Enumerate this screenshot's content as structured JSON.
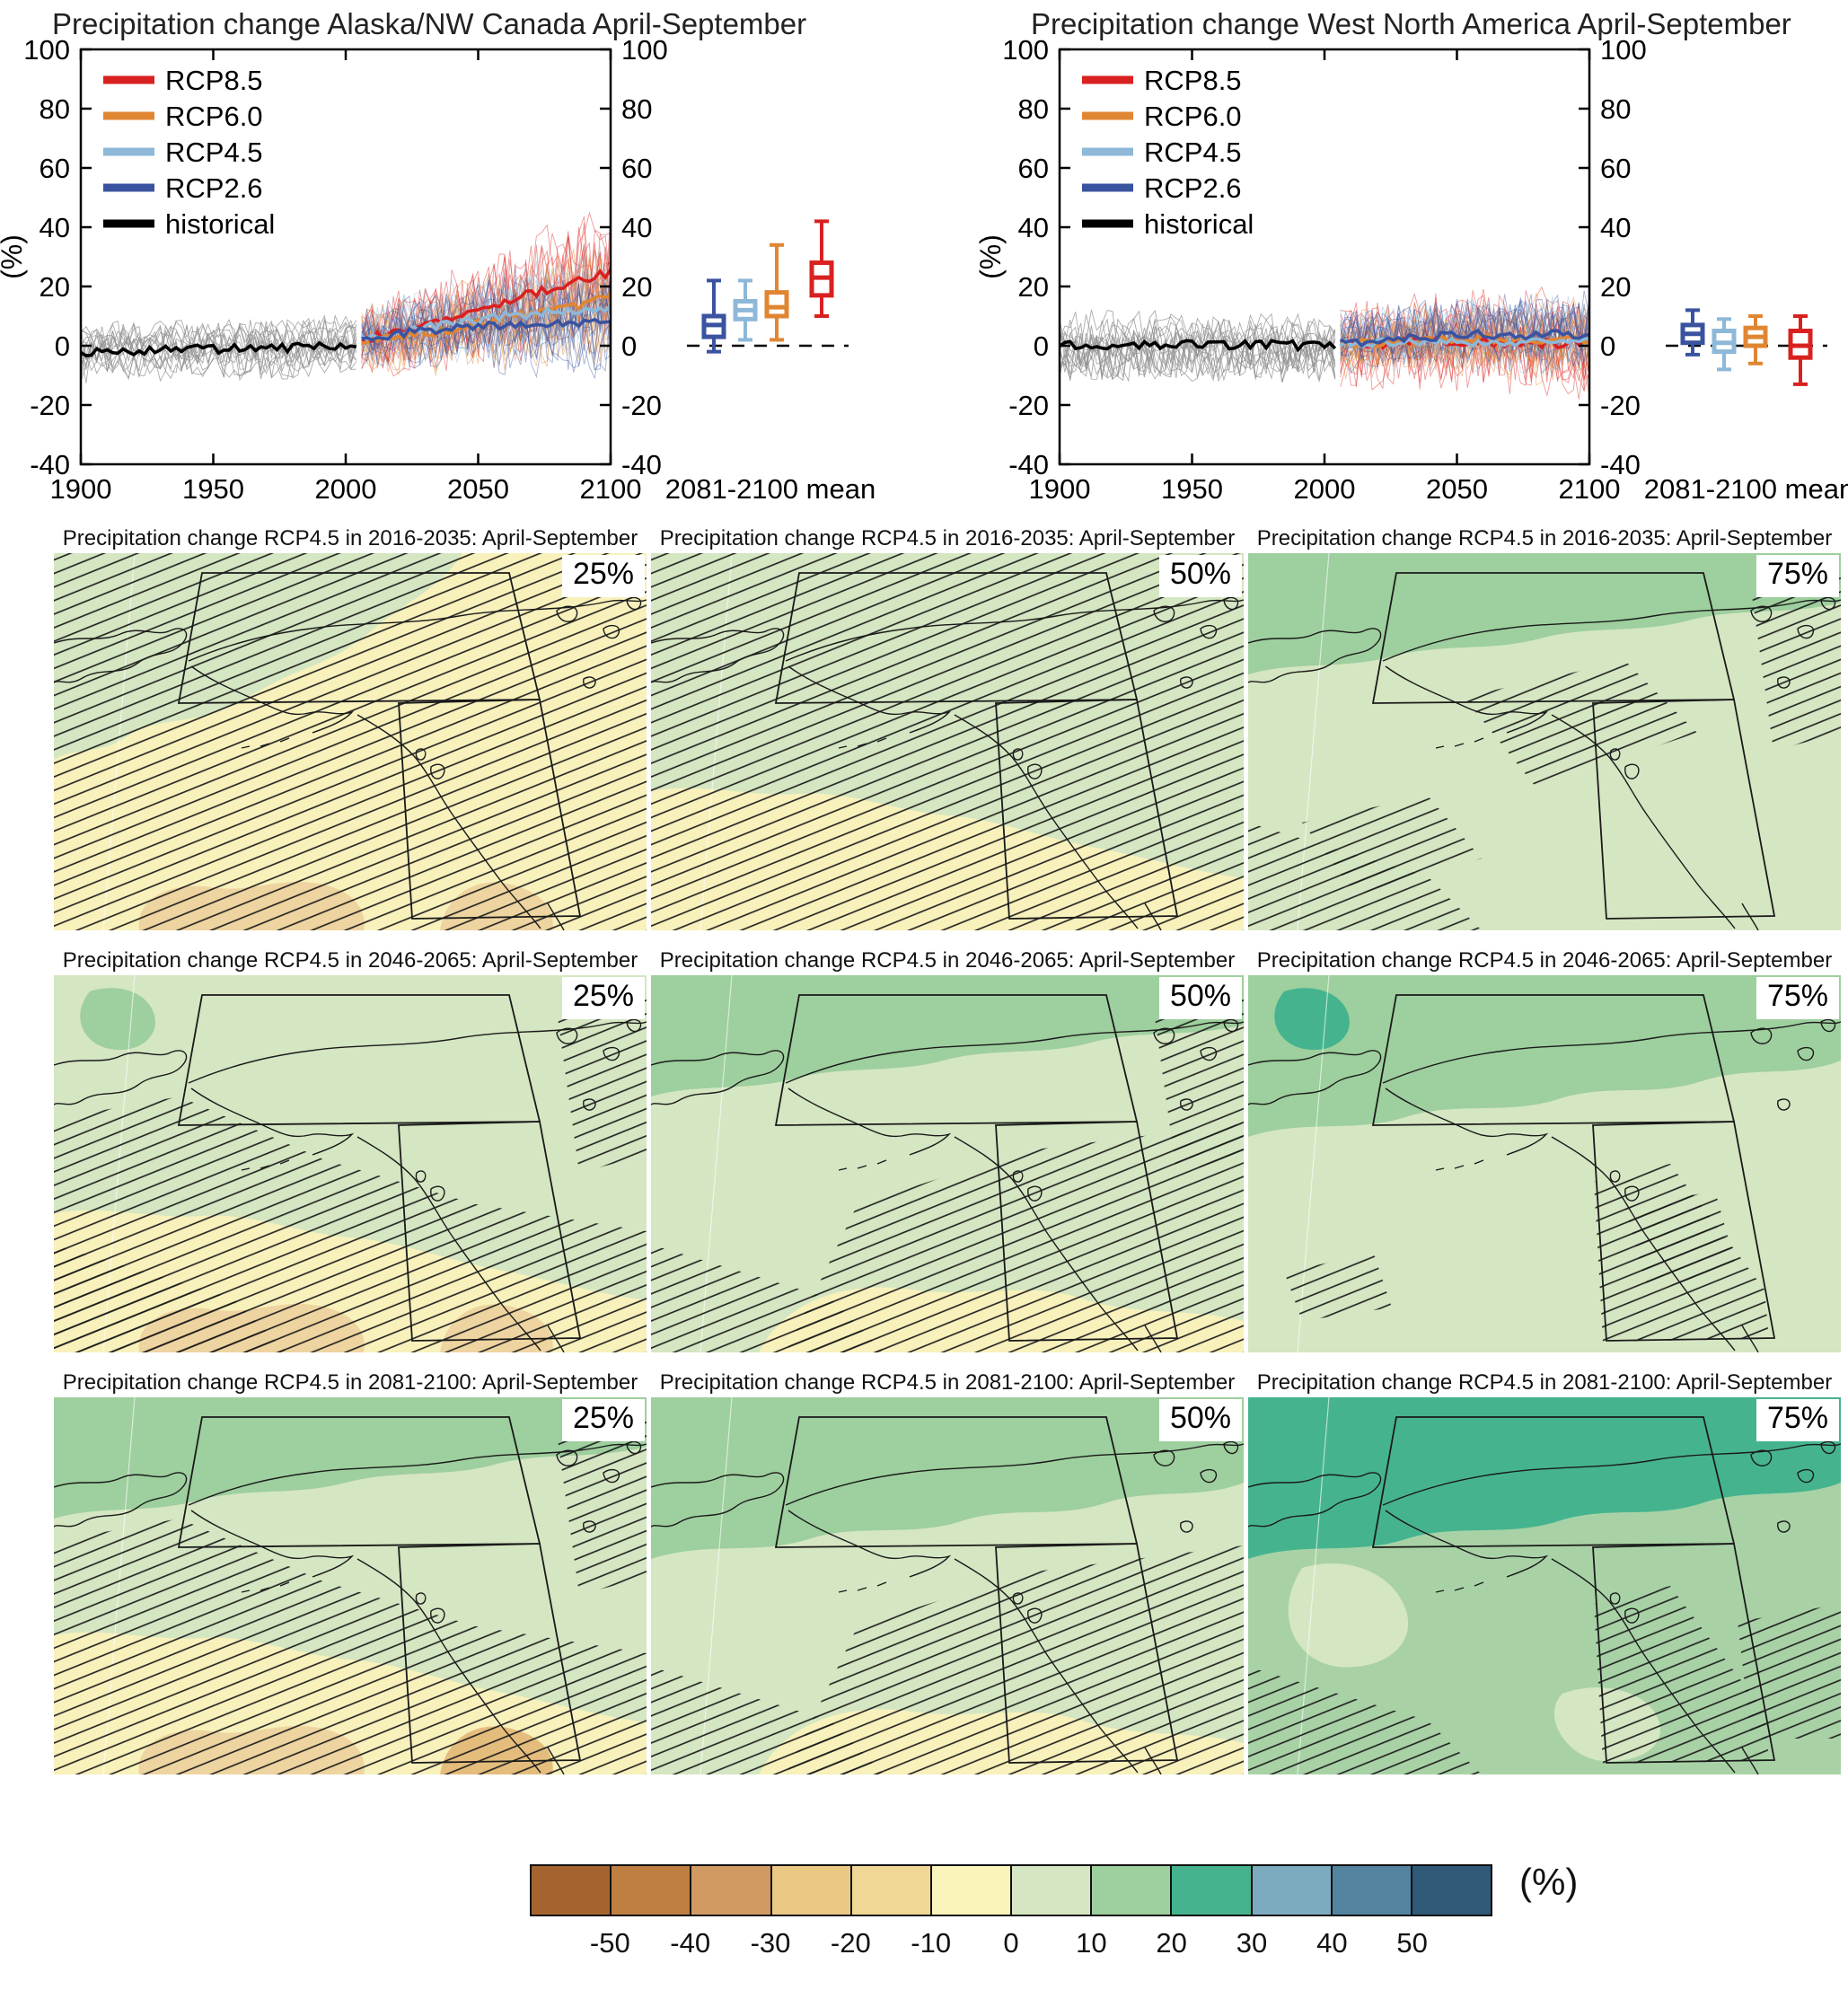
{
  "colors": {
    "rcp85": "#d92120",
    "rcp60": "#e08632",
    "rcp45": "#8db8d8",
    "rcp26": "#3a53a0",
    "historical": "#000000",
    "hist_ensemble": "#909090",
    "map_outline": "#1a1a1a"
  },
  "legend": [
    {
      "key": "rcp85",
      "label": "RCP8.5"
    },
    {
      "key": "rcp60",
      "label": "RCP6.0"
    },
    {
      "key": "rcp45",
      "label": "RCP4.5"
    },
    {
      "key": "rcp26",
      "label": "RCP2.6"
    },
    {
      "key": "historical",
      "label": "historical"
    }
  ],
  "chart_data": {
    "type": "line+box",
    "note": "Ensemble spaghetti time series 1900-2100 with 2081-2100 box-whisker summaries",
    "ylim": [
      -40,
      100
    ],
    "yticks": [
      -40,
      -20,
      0,
      20,
      40,
      60,
      80,
      100
    ],
    "xticks": [
      1900,
      1950,
      2000,
      2050,
      2100
    ]
  },
  "charts": [
    {
      "title": "Precipitation change Alaska/NW Canada April-September",
      "ylabel": "(%)",
      "box_label": "2081-2100 mean",
      "ylim": [
        -40,
        100
      ],
      "yticks": [
        -40,
        -20,
        0,
        20,
        40,
        60,
        80,
        100
      ],
      "xticks": [
        1900,
        1950,
        2000,
        2050,
        2100
      ],
      "trends": {
        "historical": {
          "x": [
            1900,
            1920,
            1940,
            1960,
            1980,
            2000,
            2005
          ],
          "y": [
            -2,
            -1.5,
            -1,
            -1,
            -0.5,
            0.5,
            1
          ]
        },
        "rcp26": {
          "x": [
            2006,
            2030,
            2060,
            2100
          ],
          "y": [
            2,
            5,
            7,
            8
          ]
        },
        "rcp45": {
          "x": [
            2006,
            2030,
            2060,
            2100
          ],
          "y": [
            2,
            6,
            10,
            13
          ]
        },
        "rcp60": {
          "x": [
            2006,
            2030,
            2060,
            2100
          ],
          "y": [
            2,
            4,
            9,
            16
          ]
        },
        "rcp85": {
          "x": [
            2006,
            2030,
            2060,
            2100
          ],
          "y": [
            2,
            7,
            15,
            25
          ]
        }
      },
      "noise": {
        "hist_band": 11,
        "proj_band": 14,
        "proj_growth": 1.9,
        "seed": 7
      },
      "boxes": [
        {
          "key": "rcp26",
          "lo": -2,
          "q1": 3,
          "med": 7,
          "q3": 10,
          "hi": 22
        },
        {
          "key": "rcp45",
          "lo": 2,
          "q1": 9,
          "med": 12,
          "q3": 15,
          "hi": 22
        },
        {
          "key": "rcp60",
          "lo": 2,
          "q1": 10,
          "med": 13,
          "q3": 18,
          "hi": 34
        },
        {
          "key": "rcp85",
          "lo": 10,
          "q1": 17,
          "med": 23,
          "q3": 28,
          "hi": 42
        }
      ]
    },
    {
      "title": "Precipitation change West North America April-September",
      "ylabel": "(%)",
      "box_label": "2081-2100 mean",
      "ylim": [
        -40,
        100
      ],
      "yticks": [
        -40,
        -20,
        0,
        20,
        40,
        60,
        80,
        100
      ],
      "xticks": [
        1900,
        1950,
        2000,
        2050,
        2100
      ],
      "trends": {
        "historical": {
          "x": [
            1900,
            1950,
            2000,
            2005
          ],
          "y": [
            0,
            0.5,
            0,
            0.5
          ]
        },
        "rcp26": {
          "x": [
            2006,
            2050,
            2100
          ],
          "y": [
            1,
            3.5,
            4
          ]
        },
        "rcp45": {
          "x": [
            2006,
            2050,
            2100
          ],
          "y": [
            0.5,
            1.5,
            1
          ]
        },
        "rcp60": {
          "x": [
            2006,
            2050,
            2100
          ],
          "y": [
            0.5,
            2,
            2.5
          ]
        },
        "rcp85": {
          "x": [
            2006,
            2050,
            2100
          ],
          "y": [
            0.5,
            1.5,
            0.5
          ]
        }
      },
      "noise": {
        "hist_band": 13,
        "proj_band": 15,
        "proj_growth": 1.3,
        "seed": 23
      },
      "boxes": [
        {
          "key": "rcp26",
          "lo": -3,
          "q1": 1,
          "med": 4,
          "q3": 7,
          "hi": 12
        },
        {
          "key": "rcp45",
          "lo": -8,
          "q1": -2,
          "med": 1,
          "q3": 5,
          "hi": 9
        },
        {
          "key": "rcp60",
          "lo": -6,
          "q1": 0,
          "med": 3,
          "q3": 6,
          "hi": 10
        },
        {
          "key": "rcp85",
          "lo": -13,
          "q1": -4,
          "med": 0,
          "q3": 5,
          "hi": 10
        }
      ]
    }
  ],
  "maps": {
    "rows": [
      {
        "title": "Precipitation change RCP4.5 in 2016-2035: April-September",
        "panels": [
          {
            "percentile": "25%",
            "bg": "#f8f1bc",
            "blobs": [
              {
                "shape": "nw_big",
                "fill": "#d5e6c2"
              },
              {
                "shape": "tan_blob",
                "fill": "#eed4a0"
              },
              {
                "shape": "tan_blob2",
                "fill": "#eed4a0"
              }
            ],
            "hatch": [
              "full"
            ]
          },
          {
            "percentile": "50%",
            "bg": "#d5e6c2",
            "blobs": [
              {
                "shape": "south_yellow",
                "fill": "#f8f1bc"
              },
              {
                "shape": "green_patch_mid",
                "fill": "#d5e6c2"
              }
            ],
            "hatch": [
              "full"
            ]
          },
          {
            "percentile": "75%",
            "bg": "#d5e6c2",
            "blobs": [
              {
                "shape": "arctic_band",
                "fill": "#9ecf9e"
              }
            ],
            "hatch": [
              "mid_patches",
              "bottom_left",
              "east_edge"
            ]
          }
        ]
      },
      {
        "title": "Precipitation change RCP4.5 in 2046-2065: April-September",
        "panels": [
          {
            "percentile": "25%",
            "bg": "#d5e6c2",
            "blobs": [
              {
                "shape": "teal_spot",
                "fill": "#9ecf9e"
              },
              {
                "shape": "south_yellow",
                "fill": "#f8f1bc"
              },
              {
                "shape": "tan_blob",
                "fill": "#eed4a0"
              },
              {
                "shape": "tan_blob2",
                "fill": "#eed4a0"
              }
            ],
            "hatch": [
              "south_heavy",
              "bottom_left",
              "east_edge"
            ]
          },
          {
            "percentile": "50%",
            "bg": "#d5e6c2",
            "blobs": [
              {
                "shape": "arctic_band",
                "fill": "#9ecf9e"
              },
              {
                "shape": "south_yellow_small",
                "fill": "#f8f1bc"
              }
            ],
            "hatch": [
              "se_band",
              "bottom_left",
              "east_edge"
            ]
          },
          {
            "percentile": "75%",
            "bg": "#d5e6c2",
            "blobs": [
              {
                "shape": "arctic_band_deep",
                "fill": "#9ecf9e"
              },
              {
                "shape": "teal_spot",
                "fill": "#45b48e"
              }
            ],
            "hatch": [
              "patches_light",
              "south_box"
            ]
          }
        ]
      },
      {
        "title": "Precipitation change RCP4.5 in 2081-2100: April-September",
        "panels": [
          {
            "percentile": "25%",
            "bg": "#d5e6c2",
            "blobs": [
              {
                "shape": "arctic_band",
                "fill": "#9ecf9e"
              },
              {
                "shape": "south_yellow",
                "fill": "#f8f1bc"
              },
              {
                "shape": "tan_blob",
                "fill": "#eed4a0"
              },
              {
                "shape": "tan_blob2",
                "fill": "#e4bd7d"
              }
            ],
            "hatch": [
              "south_heavy",
              "east_edge"
            ]
          },
          {
            "percentile": "50%",
            "bg": "#d5e6c2",
            "blobs": [
              {
                "shape": "arctic_band_deep",
                "fill": "#9ecf9e"
              },
              {
                "shape": "south_yellow_small",
                "fill": "#f8f1bc"
              }
            ],
            "hatch": [
              "se_band",
              "bottom_left"
            ]
          },
          {
            "percentile": "75%",
            "bg": "#a8d2a6",
            "blobs": [
              {
                "shape": "arctic_band_deep",
                "fill": "#45b48e"
              },
              {
                "shape": "pale_patch_w",
                "fill": "#d5e6c2"
              },
              {
                "shape": "pale_patch_s",
                "fill": "#d5e6c2"
              }
            ],
            "hatch": [
              "south_box",
              "bottom_left",
              "east_edge_low"
            ]
          }
        ]
      }
    ]
  },
  "colorbar": {
    "unit": "(%)",
    "ticks": [
      -50,
      -40,
      -30,
      -20,
      -10,
      0,
      10,
      20,
      30,
      40,
      50
    ],
    "cells": [
      "#a5642f",
      "#bf7f43",
      "#d09a62",
      "#ebc985",
      "#f0d795",
      "#faf3ba",
      "#d5e6c2",
      "#9ecf9e",
      "#45b48e",
      "#7cabc0",
      "#54839f",
      "#2f5977"
    ]
  }
}
